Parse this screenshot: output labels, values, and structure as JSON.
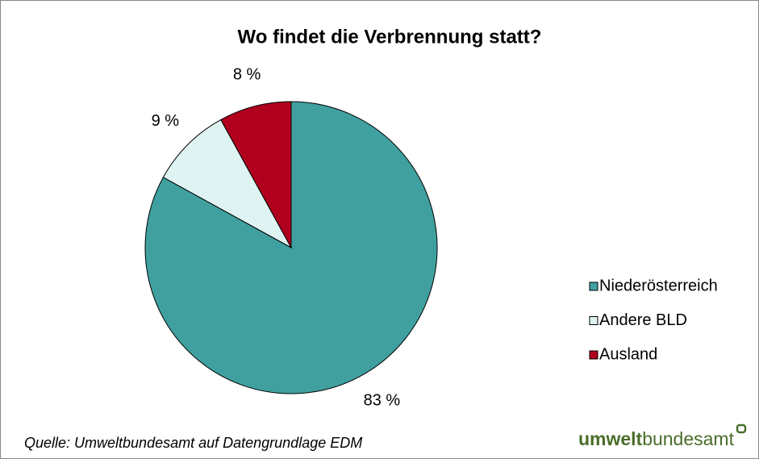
{
  "chart_data": {
    "type": "pie",
    "title": "Wo findet die Verbrennung statt?",
    "categories": [
      "Niederösterreich",
      "Andere BLD",
      "Ausland"
    ],
    "values": [
      83,
      9,
      8
    ],
    "value_labels": [
      "83 %",
      "9 %",
      "8 %"
    ],
    "colors": [
      "#40a0a0",
      "#dff3f3",
      "#b0001e"
    ],
    "legend": "right",
    "source": "Quelle: Umweltbundesamt auf Datengrundlage EDM",
    "logo": {
      "bold": "umwelt",
      "rest": "bundesamt"
    }
  }
}
